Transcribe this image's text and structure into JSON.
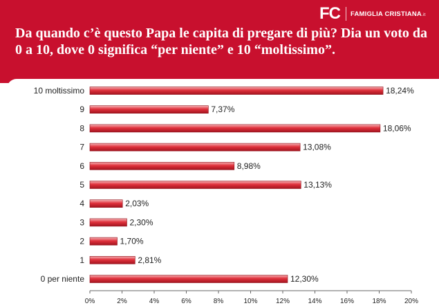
{
  "header": {
    "logo_mark": "FC",
    "logo_text": "FAMIGLIA CRISTIANA",
    "logo_suffix": ".it",
    "title": "Da quando c’è questo Papa le capita di pregare di più? Dia un voto da 0 a 10, dove 0 significa “per niente” e 10 “moltissimo”."
  },
  "colors": {
    "header_bg": "#c8102e",
    "bar_dark": "#a3141f",
    "bar_mid": "#e0313c",
    "bar_light": "#f6b3b6"
  },
  "chart_data": {
    "type": "bar",
    "orientation": "horizontal",
    "categories": [
      "10 moltissimo",
      "9",
      "8",
      "7",
      "6",
      "5",
      "4",
      "3",
      "2",
      "1",
      "0 per niente"
    ],
    "values": [
      18.24,
      7.37,
      18.06,
      13.08,
      8.98,
      13.13,
      2.03,
      2.3,
      1.7,
      2.81,
      12.3
    ],
    "value_labels": [
      "18,24%",
      "7,37%",
      "18,06%",
      "13,08%",
      "8,98%",
      "13,13%",
      "2,03%",
      "2,30%",
      "1,70%",
      "2,81%",
      "12,30%"
    ],
    "xlim": [
      0,
      20
    ],
    "xticks": [
      "0%",
      "2%",
      "4%",
      "6%",
      "8%",
      "10%",
      "12%",
      "14%",
      "16%",
      "18%",
      "20%"
    ],
    "grid": false,
    "legend": "none"
  }
}
